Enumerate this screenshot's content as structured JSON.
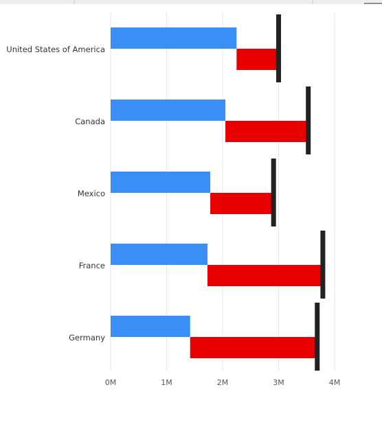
{
  "chart_data": {
    "type": "bullet",
    "categories": [
      "United States of America",
      "Canada",
      "Mexico",
      "France",
      "Germany"
    ],
    "series": [
      {
        "color": "#3a8ff7",
        "values": [
          2.25,
          2.05,
          1.78,
          1.73,
          1.42
        ]
      },
      {
        "color": "#e80000",
        "values": [
          0.75,
          1.48,
          1.13,
          2.06,
          2.27
        ]
      }
    ],
    "targets": {
      "color": "#222222",
      "values": [
        3.0,
        3.53,
        2.91,
        3.79,
        3.69
      ]
    },
    "xlim": [
      0,
      4.15
    ],
    "xticks": [
      {
        "value": 0,
        "label": "0M"
      },
      {
        "value": 1,
        "label": "1M"
      },
      {
        "value": 2,
        "label": "2M"
      },
      {
        "value": 3,
        "label": "3M"
      },
      {
        "value": 4,
        "label": "4M"
      }
    ],
    "grid": true
  }
}
